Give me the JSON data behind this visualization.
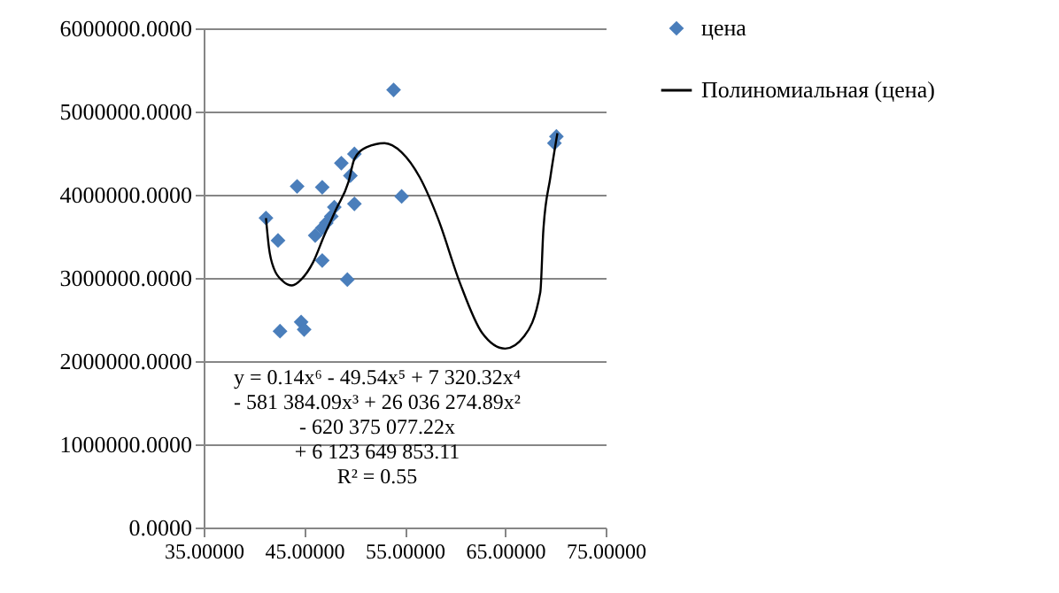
{
  "chart_data": {
    "type": "scatter",
    "xlim": [
      35,
      75
    ],
    "xticks": [
      {
        "value": 35,
        "label": "35.00000"
      },
      {
        "value": 45,
        "label": "45.00000"
      },
      {
        "value": 55,
        "label": "55.00000"
      },
      {
        "value": 65,
        "label": "65.00000"
      },
      {
        "value": 75,
        "label": "75.00000"
      }
    ],
    "ylim": [
      0,
      6000000
    ],
    "yticks": [
      {
        "value": 0,
        "label": "0.0000"
      },
      {
        "value": 1000000,
        "label": "1000000.0000"
      },
      {
        "value": 2000000,
        "label": "2000000.0000"
      },
      {
        "value": 3000000,
        "label": "3000000.0000"
      },
      {
        "value": 4000000,
        "label": "4000000.0000"
      },
      {
        "value": 5000000,
        "label": "5000000.0000"
      },
      {
        "value": 6000000,
        "label": "6000000.0000"
      }
    ],
    "grid": "y",
    "legend": "right",
    "series": [
      {
        "name": "цена",
        "type": "scatter",
        "marker": "diamond",
        "color": "#4a7ebb",
        "x": [
          41.2,
          42.4,
          44.3,
          46.8,
          48.7,
          49.6,
          50.0,
          54.7,
          46.1,
          47.7,
          48.0,
          47.2,
          46.8,
          46.8,
          49.3,
          42.6,
          44.7,
          45.0,
          53.9,
          50.0,
          70.1,
          69.9
        ],
        "values": [
          3720000,
          3450000,
          4100000,
          4090000,
          4380000,
          4230000,
          3890000,
          3980000,
          3510000,
          3740000,
          3850000,
          3660000,
          3600000,
          3210000,
          2980000,
          2360000,
          2470000,
          2380000,
          5260000,
          4490000,
          4700000,
          4620000
        ]
      },
      {
        "name": "Полиномиальная (цена)",
        "type": "line",
        "marker": "none",
        "color": "#000000",
        "x": [
          41.2,
          41.5,
          42.0,
          42.9,
          43.8,
          44.7,
          45.9,
          47.0,
          48.2,
          49.4,
          50.0,
          51.2,
          53.0,
          54.7,
          56.5,
          58.3,
          60.5,
          62.7,
          65.0,
          66.9,
          68.5,
          68.8,
          69.5,
          70.2
        ],
        "values": [
          3720000,
          3360000,
          3110000,
          2960000,
          2910000,
          2980000,
          3190000,
          3510000,
          3830000,
          4150000,
          4430000,
          4570000,
          4620000,
          4510000,
          4210000,
          3720000,
          2940000,
          2340000,
          2150000,
          2300000,
          2830000,
          3570000,
          4210000,
          4740000
        ]
      }
    ],
    "annotations": [
      "y = 0.14x⁶ - 49.54x⁵ + 7 320.32x⁴ - 581 384.09x³ + 26 036 274.89x² - 620 375 077.22x + 6 123 649 853.11",
      "R² = 0.55"
    ]
  }
}
